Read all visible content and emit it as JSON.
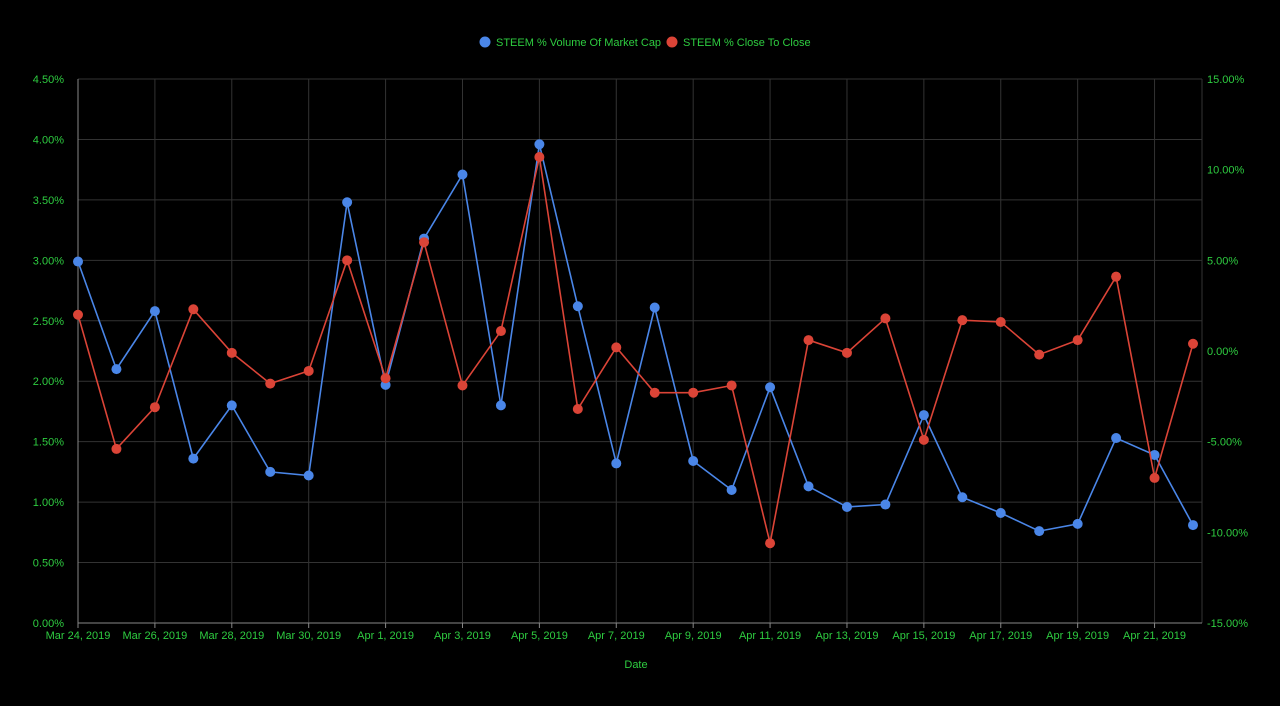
{
  "chart_data": {
    "type": "line",
    "xlabel": "Date",
    "x": [
      "Mar 24, 2019",
      "Mar 25, 2019",
      "Mar 26, 2019",
      "Mar 27, 2019",
      "Mar 28, 2019",
      "Mar 29, 2019",
      "Mar 30, 2019",
      "Mar 31, 2019",
      "Apr 1, 2019",
      "Apr 2, 2019",
      "Apr 3, 2019",
      "Apr 4, 2019",
      "Apr 5, 2019",
      "Apr 6, 2019",
      "Apr 7, 2019",
      "Apr 8, 2019",
      "Apr 9, 2019",
      "Apr 10, 2019",
      "Apr 11, 2019",
      "Apr 12, 2019",
      "Apr 13, 2019",
      "Apr 14, 2019",
      "Apr 15, 2019",
      "Apr 16, 2019",
      "Apr 17, 2019",
      "Apr 18, 2019",
      "Apr 19, 2019",
      "Apr 20, 2019",
      "Apr 21, 2019",
      "Apr 22, 2019"
    ],
    "x_tick_labels": [
      "Mar 24, 2019",
      "Mar 26, 2019",
      "Mar 28, 2019",
      "Mar 30, 2019",
      "Apr 1, 2019",
      "Apr 3, 2019",
      "Apr 5, 2019",
      "Apr 7, 2019",
      "Apr 9, 2019",
      "Apr 11, 2019",
      "Apr 13, 2019",
      "Apr 15, 2019",
      "Apr 17, 2019",
      "Apr 19, 2019",
      "Apr 21, 2019"
    ],
    "y_left": {
      "ylim": [
        0,
        4.5
      ],
      "ticks": [
        0,
        0.5,
        1,
        1.5,
        2,
        2.5,
        3,
        3.5,
        4,
        4.5
      ],
      "tick_labels": [
        "0.00%",
        "0.50%",
        "1.00%",
        "1.50%",
        "2.00%",
        "2.50%",
        "3.00%",
        "3.50%",
        "4.00%",
        "4.50%"
      ]
    },
    "y_right": {
      "ylim": [
        -15,
        15
      ],
      "ticks": [
        -15,
        -10,
        -5,
        0,
        5,
        10,
        15
      ],
      "tick_labels": [
        "-15.00%",
        "-10.00%",
        "-5.00%",
        "0.00%",
        "5.00%",
        "10.00%",
        "15.00%"
      ]
    },
    "series": [
      {
        "name": "STEEM % Volume Of Market Cap",
        "axis": "left",
        "color": "#4a86e8",
        "values": [
          2.99,
          2.1,
          2.58,
          1.36,
          1.8,
          1.25,
          1.22,
          3.48,
          1.97,
          3.18,
          3.71,
          1.8,
          3.96,
          2.62,
          1.32,
          2.61,
          1.34,
          1.1,
          1.95,
          1.13,
          0.96,
          0.98,
          1.72,
          1.04,
          0.91,
          0.76,
          0.82,
          1.53,
          1.39,
          0.81
        ]
      },
      {
        "name": "STEEM % Close To Close",
        "axis": "right",
        "color": "#db4437",
        "values": [
          2.0,
          -5.4,
          -3.1,
          2.3,
          -0.1,
          -1.8,
          -1.1,
          5.0,
          -1.5,
          6.0,
          -1.9,
          1.1,
          10.7,
          -3.2,
          0.2,
          -2.3,
          -2.3,
          -1.9,
          -10.6,
          0.6,
          -0.1,
          1.8,
          -4.9,
          1.7,
          1.6,
          -0.2,
          0.6,
          4.1,
          -7.0,
          0.4
        ]
      }
    ],
    "legend_position": "top",
    "grid": true
  }
}
